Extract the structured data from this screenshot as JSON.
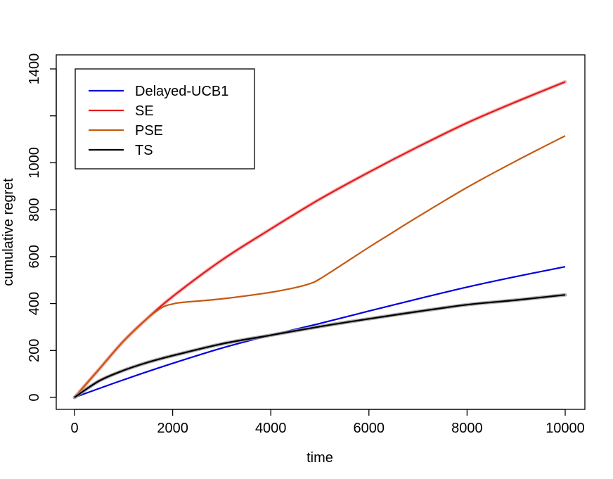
{
  "chart_data": {
    "type": "line",
    "title": "",
    "xlabel": "time",
    "ylabel": "cumulative regret",
    "xlim": [
      0,
      10000
    ],
    "ylim": [
      0,
      1400
    ],
    "xticks": [
      0,
      2000,
      4000,
      6000,
      8000,
      10000
    ],
    "yticks": [
      0,
      200,
      400,
      600,
      800,
      1000,
      1200,
      1400
    ],
    "ytick_labels": [
      "0",
      "200",
      "400",
      "600",
      "800",
      "1000",
      "",
      "1400"
    ],
    "grid": false,
    "legend_position": "top-left",
    "series": [
      {
        "name": "Delayed-UCB1",
        "color": "#0000dd",
        "band_color": "",
        "x": [
          0,
          1000,
          2000,
          3000,
          4000,
          5000,
          6000,
          7000,
          8000,
          9000,
          10000
        ],
        "y": [
          0,
          75,
          145,
          210,
          265,
          315,
          368,
          420,
          470,
          515,
          557
        ]
      },
      {
        "name": "SE",
        "color": "#e31a1c",
        "band_color": "#f4a6a6",
        "x": [
          0,
          500,
          1000,
          1500,
          2000,
          3000,
          4000,
          5000,
          6000,
          7000,
          8000,
          9000,
          10000
        ],
        "y": [
          0,
          120,
          240,
          340,
          430,
          585,
          718,
          845,
          960,
          1068,
          1170,
          1260,
          1345
        ]
      },
      {
        "name": "PSE",
        "color": "#c55a11",
        "band_color": "",
        "x": [
          0,
          500,
          1000,
          1500,
          1800,
          2000,
          2200,
          3000,
          4000,
          4500,
          4800,
          5000,
          5500,
          6000,
          6500,
          7000,
          8000,
          9000,
          10000
        ],
        "y": [
          0,
          120,
          240,
          340,
          385,
          398,
          405,
          420,
          448,
          468,
          485,
          505,
          572,
          640,
          705,
          770,
          895,
          1008,
          1115
        ]
      },
      {
        "name": "TS",
        "color": "#000000",
        "band_color": "#999999",
        "x": [
          0,
          500,
          1000,
          1500,
          2000,
          3000,
          4000,
          5000,
          6000,
          7000,
          8000,
          9000,
          10000
        ],
        "y": [
          0,
          70,
          115,
          150,
          178,
          228,
          265,
          302,
          335,
          366,
          395,
          415,
          437
        ]
      }
    ]
  }
}
